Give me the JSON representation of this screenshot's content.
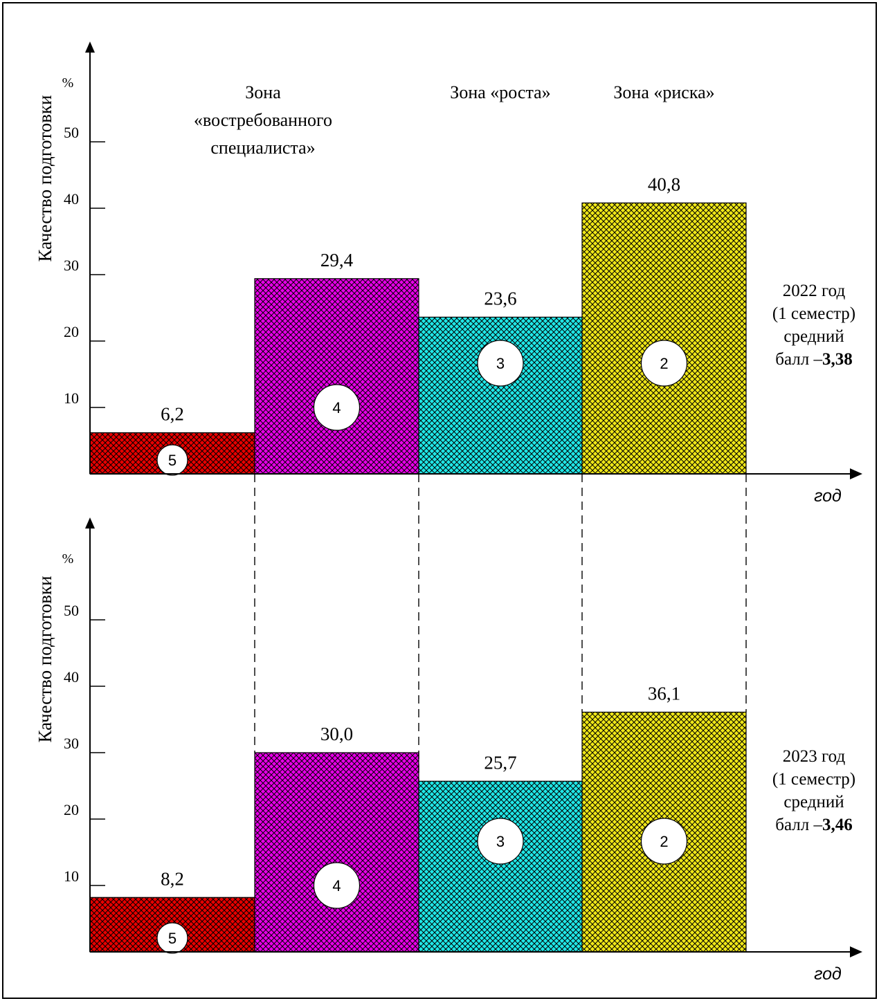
{
  "chart_data": {
    "type": "bar",
    "zones": [
      {
        "lines": [
          "Зона",
          "«востребованного",
          "специалиста»"
        ]
      },
      {
        "lines": [
          "Зона «роста»"
        ]
      },
      {
        "lines": [
          "Зона «риска»"
        ]
      }
    ],
    "y_axis_label": "Качество подготовки",
    "y_unit": "%",
    "x_axis_label": "год",
    "yticks": [
      10,
      20,
      30,
      40,
      50
    ],
    "ylim": [
      0,
      60
    ],
    "pattern": "crosshatch",
    "panels": [
      {
        "side_note": [
          "2022 год",
          "(1 семестр)",
          "средний"
        ],
        "avg_prefix": "балл – ",
        "avg_value": "3,38",
        "bars": [
          {
            "grade": "5",
            "value": 6.2,
            "label": "6,2",
            "color": "#e80000"
          },
          {
            "grade": "4",
            "value": 29.4,
            "label": "29,4",
            "color": "#e800e8"
          },
          {
            "grade": "3",
            "value": 23.6,
            "label": "23,6",
            "color": "#20e8e8"
          },
          {
            "grade": "2",
            "value": 40.8,
            "label": "40,8",
            "color": "#f0e818"
          }
        ]
      },
      {
        "side_note": [
          "2023 год",
          "(1 семестр)",
          "средний"
        ],
        "avg_prefix": "балл – ",
        "avg_value": "3,46",
        "bars": [
          {
            "grade": "5",
            "value": 8.2,
            "label": "8,2",
            "color": "#e80000"
          },
          {
            "grade": "4",
            "value": 30.0,
            "label": "30,0",
            "color": "#e800e8"
          },
          {
            "grade": "3",
            "value": 25.7,
            "label": "25,7",
            "color": "#20e8e8"
          },
          {
            "grade": "2",
            "value": 36.1,
            "label": "36,1",
            "color": "#f0e818"
          }
        ]
      }
    ]
  }
}
